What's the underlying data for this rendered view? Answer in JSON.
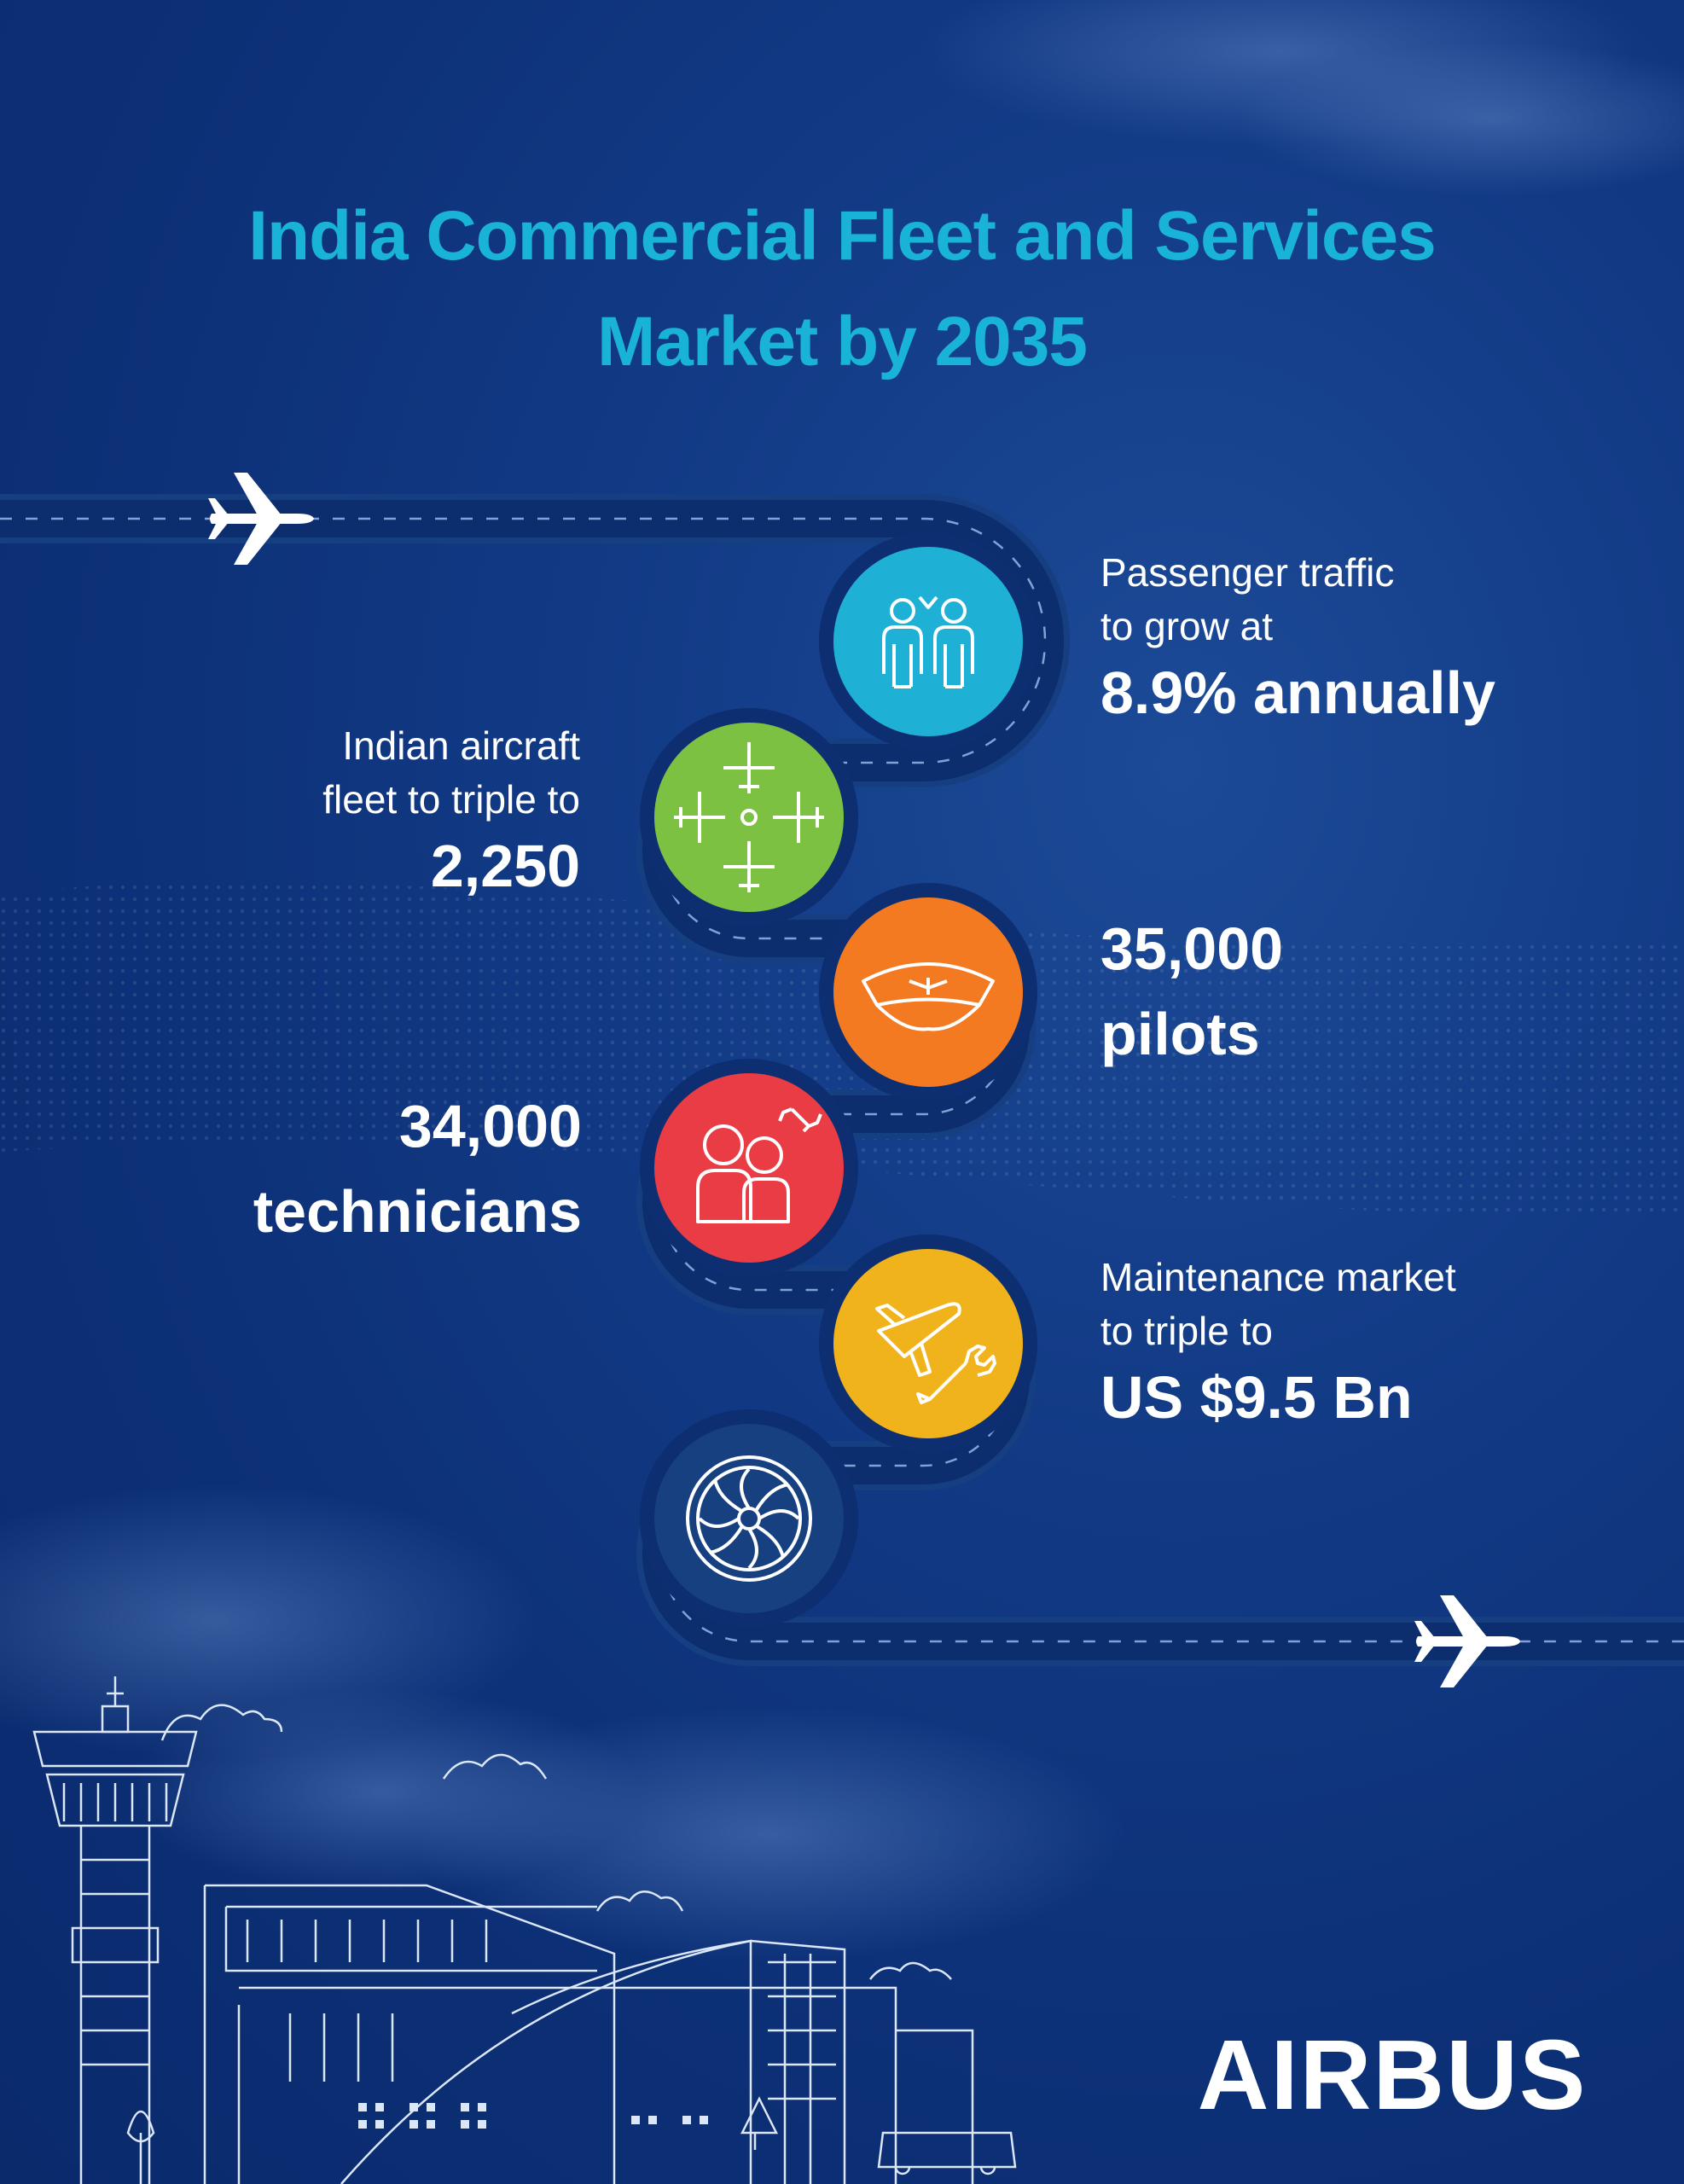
{
  "title": {
    "line1": "India Commercial Fleet and Services",
    "line2": "Market by 2035"
  },
  "stats": {
    "passenger": {
      "line1": "Passenger traffic",
      "line2": "to grow at",
      "value": "8.9% annually"
    },
    "fleet": {
      "line1": "Indian aircraft",
      "line2": "fleet to triple to",
      "value": "2,250"
    },
    "pilots": {
      "value": "35,000",
      "label": "pilots"
    },
    "technicians": {
      "value": "34,000",
      "label": "technicians"
    },
    "maintenance": {
      "line1": "Maintenance market",
      "line2": "to triple to",
      "value": "US $9.5 Bn"
    }
  },
  "logo": "AIRBUS",
  "colors": {
    "title": "#1ab3d8",
    "circle_passenger": "#1fb0d6",
    "circle_fleet": "#7dc143",
    "circle_pilots": "#f37a21",
    "circle_technicians": "#ea3c45",
    "circle_maintenance": "#f1b31c",
    "circle_engine": "#16407f"
  },
  "icons": [
    "airplane-icon",
    "passengers-icon",
    "aircraft-fleet-icon",
    "pilot-cap-icon",
    "technicians-icon",
    "plane-wrench-icon",
    "jet-engine-icon",
    "control-tower-icon",
    "terminal-building-icon"
  ]
}
